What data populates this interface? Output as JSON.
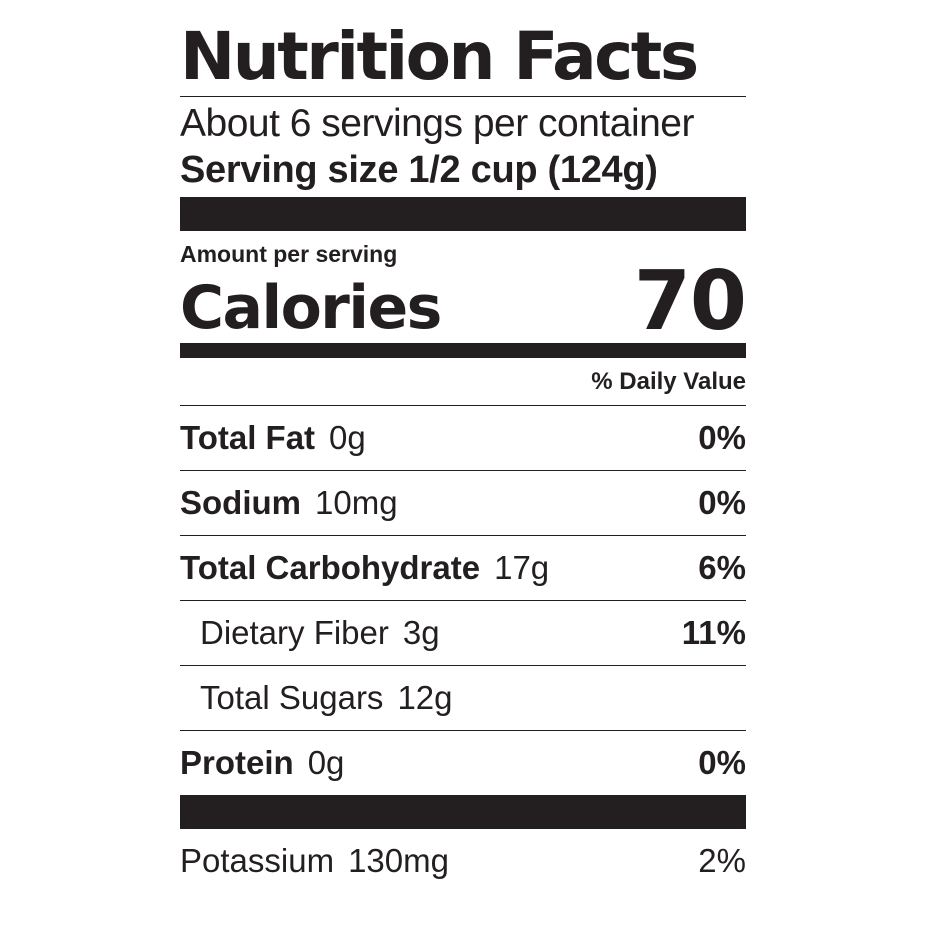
{
  "title": "Nutrition Facts",
  "servings_per_container": "About 6 servings per container",
  "serving_size": "Serving size 1/2 cup (124g)",
  "amount_per_serving": "Amount per serving",
  "calories_label": "Calories",
  "calories_value": "70",
  "daily_value_header": "% Daily Value",
  "nutrients": [
    {
      "name": "Total Fat",
      "amount": "0g",
      "dv": "0%"
    },
    {
      "name": "Sodium",
      "amount": "10mg",
      "dv": "0%"
    },
    {
      "name": "Total Carbohydrate",
      "amount": "17g",
      "dv": "6%"
    },
    {
      "name": "Dietary Fiber",
      "amount": "3g",
      "dv": "11%"
    },
    {
      "name": "Total Sugars",
      "amount": "12g",
      "dv": ""
    },
    {
      "name": "Protein",
      "amount": "0g",
      "dv": "0%"
    }
  ],
  "minerals": [
    {
      "name": "Potassium",
      "amount": "130mg",
      "dv": "2%"
    }
  ]
}
